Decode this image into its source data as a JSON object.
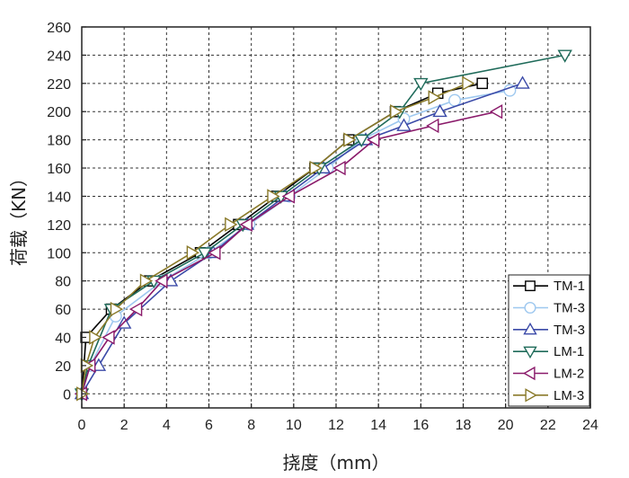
{
  "chart_data": {
    "type": "line",
    "title": "",
    "xlabel": "挠度（mm）",
    "ylabel": "荷载（KN）",
    "xlim": [
      0,
      24
    ],
    "ylim": [
      -10,
      260
    ],
    "xticks": [
      0,
      2,
      4,
      6,
      8,
      10,
      12,
      14,
      16,
      18,
      20,
      22,
      24
    ],
    "yticks": [
      0,
      20,
      40,
      60,
      80,
      100,
      120,
      140,
      160,
      180,
      200,
      220,
      240,
      260
    ],
    "grid": true,
    "legend_position": "bottom-right",
    "series": [
      {
        "name": "TM-1",
        "color": "#000000",
        "marker": "square",
        "x": [
          0,
          0.2,
          1.4,
          3.2,
          5.6,
          7.4,
          9.2,
          11.0,
          12.6,
          14.8,
          16.8,
          18.9
        ],
        "y": [
          0,
          40,
          60,
          80,
          100,
          120,
          140,
          160,
          180,
          200,
          213,
          220
        ]
      },
      {
        "name": "TM-3",
        "color": "#9ec8ef",
        "marker": "circle",
        "x": [
          0,
          0.4,
          1.6,
          3.8,
          6.0,
          7.9,
          9.8,
          11.6,
          13.2,
          15.2,
          17.6,
          20.2
        ],
        "y": [
          0,
          20,
          55,
          80,
          100,
          120,
          140,
          160,
          180,
          195,
          208,
          215
        ]
      },
      {
        "name": "TM-3",
        "color": "#3b4aa8",
        "marker": "triangle-up",
        "x": [
          0,
          0.8,
          2.0,
          4.2,
          6.2,
          7.8,
          9.6,
          11.4,
          13.4,
          15.2,
          16.9,
          20.8
        ],
        "y": [
          0,
          20,
          50,
          80,
          100,
          120,
          140,
          160,
          180,
          190,
          200,
          220
        ]
      },
      {
        "name": "LM-1",
        "color": "#1f6b5a",
        "marker": "triangle-down",
        "x": [
          0,
          0.3,
          1.4,
          3.4,
          5.8,
          7.6,
          9.4,
          11.2,
          13.2,
          15.0,
          16.0,
          22.8
        ],
        "y": [
          0,
          20,
          60,
          80,
          100,
          120,
          140,
          160,
          180,
          200,
          220,
          240
        ]
      },
      {
        "name": "LM-2",
        "color": "#8a1a6a",
        "marker": "triangle-left",
        "x": [
          0,
          0.4,
          1.3,
          2.6,
          3.8,
          6.3,
          7.8,
          9.8,
          12.2,
          13.8,
          16.6,
          19.6
        ],
        "y": [
          0,
          20,
          40,
          60,
          80,
          100,
          120,
          140,
          160,
          180,
          190,
          200
        ]
      },
      {
        "name": "LM-3",
        "color": "#8a7a2a",
        "marker": "triangle-right",
        "x": [
          0,
          0.2,
          0.6,
          1.6,
          3.0,
          5.2,
          7.0,
          9.0,
          11.0,
          12.6,
          14.8,
          16.6,
          18.2
        ],
        "y": [
          0,
          20,
          40,
          60,
          80,
          100,
          120,
          140,
          160,
          180,
          200,
          210,
          220
        ]
      }
    ]
  }
}
